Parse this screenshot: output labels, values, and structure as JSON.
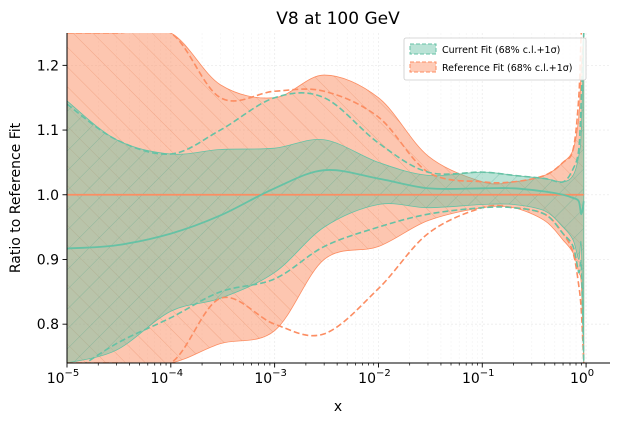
{
  "chart_data": {
    "type": "line",
    "title": "V8 at 100 GeV",
    "xlabel": "x",
    "ylabel": "Ratio to Reference Fit",
    "xscale": "log",
    "xlim": [
      1e-05,
      1.7
    ],
    "ylim": [
      0.74,
      1.25
    ],
    "grid": true,
    "legend_position": "top-right",
    "colors": {
      "current": "#66c2a5",
      "reference": "#fc8d62"
    },
    "x_ticks": [
      {
        "value": 1e-05,
        "base": "10",
        "exp": "−5"
      },
      {
        "value": 0.0001,
        "base": "10",
        "exp": "−4"
      },
      {
        "value": 0.001,
        "base": "10",
        "exp": "−3"
      },
      {
        "value": 0.01,
        "base": "10",
        "exp": "−2"
      },
      {
        "value": 0.1,
        "base": "10",
        "exp": "−1"
      },
      {
        "value": 1,
        "base": "10",
        "exp": "0"
      }
    ],
    "y_ticks": [
      {
        "value": 0.8,
        "label": "0.8"
      },
      {
        "value": 0.9,
        "label": "0.9"
      },
      {
        "value": 1.0,
        "label": "1.0"
      },
      {
        "value": 1.1,
        "label": "1.1"
      },
      {
        "value": 1.2,
        "label": "1.2"
      }
    ],
    "x": [
      1e-05,
      3e-05,
      0.0001,
      0.0003,
      0.001,
      0.003,
      0.01,
      0.03,
      0.1,
      0.2,
      0.4,
      0.6,
      0.75,
      0.85,
      0.9,
      0.95
    ],
    "series": [
      {
        "name": "Current Fit (68% c.l.+1σ)",
        "central": [
          0.917,
          0.922,
          0.94,
          0.968,
          1.01,
          1.038,
          1.025,
          1.01,
          1.01,
          1.01,
          1.005,
          1.0,
          0.995,
          0.99,
          0.97,
          0.99
        ],
        "band_upper": [
          1.145,
          1.085,
          1.063,
          1.07,
          1.072,
          1.085,
          1.05,
          1.03,
          1.035,
          1.03,
          1.025,
          1.02,
          1.03,
          1.06,
          1.1,
          1.25
        ],
        "band_lower": [
          0.74,
          0.76,
          0.82,
          0.84,
          0.88,
          0.95,
          0.985,
          0.98,
          0.985,
          0.985,
          0.975,
          0.95,
          0.93,
          0.9,
          0.92,
          0.74
        ],
        "sigma_upper": [
          1.14,
          1.085,
          1.063,
          1.1,
          1.15,
          1.15,
          1.08,
          1.035,
          1.035,
          1.03,
          1.025,
          1.02,
          1.04,
          1.07,
          1.15,
          1.25
        ],
        "sigma_lower": [
          0.72,
          0.77,
          0.81,
          0.85,
          0.87,
          0.92,
          0.95,
          0.97,
          0.98,
          0.98,
          0.97,
          0.94,
          0.92,
          0.88,
          0.89,
          0.74
        ]
      },
      {
        "name": "Reference Fit (68% c.l.+1σ)",
        "central": [
          1.0,
          1.0,
          1.0,
          1.0,
          1.0,
          1.0,
          1.0,
          1.0,
          1.0,
          1.0,
          1.0,
          1.0,
          1.0,
          1.0,
          1.0,
          1.0
        ],
        "band_upper": [
          1.25,
          1.25,
          1.25,
          1.17,
          1.15,
          1.185,
          1.15,
          1.06,
          1.02,
          1.02,
          1.03,
          1.05,
          1.07,
          1.12,
          1.2,
          1.25
        ],
        "band_lower": [
          0.74,
          0.74,
          0.74,
          0.77,
          0.79,
          0.9,
          0.92,
          0.96,
          0.98,
          0.98,
          0.96,
          0.93,
          0.91,
          0.88,
          0.86,
          0.74
        ],
        "sigma_upper": [
          1.25,
          1.25,
          1.25,
          1.15,
          1.16,
          1.16,
          1.12,
          1.035,
          1.02,
          1.02,
          1.03,
          1.05,
          1.07,
          1.15,
          1.25,
          1.25
        ],
        "sigma_lower": [
          0.74,
          0.74,
          0.74,
          0.84,
          0.8,
          0.785,
          0.855,
          0.94,
          0.98,
          0.98,
          0.97,
          0.94,
          0.91,
          0.86,
          0.82,
          0.74
        ]
      }
    ]
  }
}
